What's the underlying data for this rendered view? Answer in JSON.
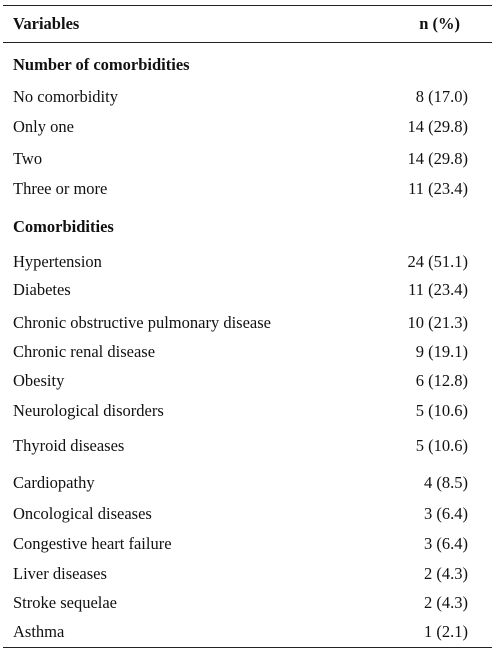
{
  "header": {
    "variables_label": "Variables",
    "n_label": "n (%)"
  },
  "sections": [
    {
      "title": "Number of comorbidities",
      "rows": [
        {
          "label": "No comorbidity",
          "value": "8 (17.0)"
        },
        {
          "label": "Only one",
          "value": "14 (29.8)"
        },
        {
          "label": "Two",
          "value": "14 (29.8)"
        },
        {
          "label": "Three or more",
          "value": "11 (23.4)"
        }
      ]
    },
    {
      "title": "Comorbidities",
      "rows": [
        {
          "label": "Hypertension",
          "value": "24 (51.1)"
        },
        {
          "label": "Diabetes",
          "value": "11 (23.4)"
        },
        {
          "label": "Chronic obstructive pulmonary disease",
          "value": "10 (21.3)"
        },
        {
          "label": "Chronic renal disease",
          "value": "9 (19.1)"
        },
        {
          "label": "Obesity",
          "value": "6 (12.8)"
        },
        {
          "label": "Neurological disorders",
          "value": "5 (10.6)"
        },
        {
          "label": "Thyroid diseases",
          "value": "5 (10.6)"
        },
        {
          "label": "Cardiopathy",
          "value": "4 (8.5)"
        },
        {
          "label": "Oncological diseases",
          "value": "3 (6.4)"
        },
        {
          "label": "Congestive heart failure",
          "value": "3 (6.4)"
        },
        {
          "label": "Liver diseases",
          "value": "2 (4.3)"
        },
        {
          "label": "Stroke sequelae",
          "value": "2 (4.3)"
        },
        {
          "label": "Asthma",
          "value": "1 (2.1)"
        }
      ]
    }
  ]
}
